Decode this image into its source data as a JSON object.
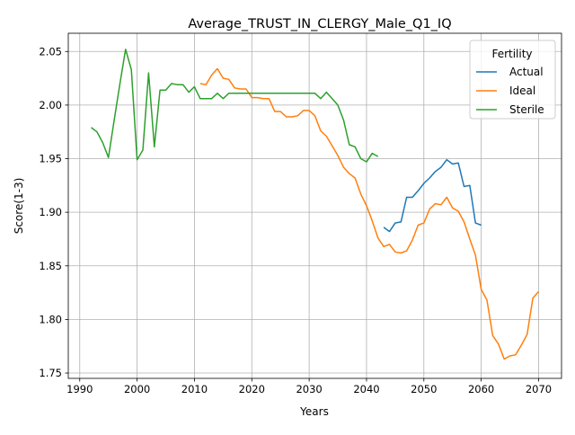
{
  "chart_data": {
    "type": "line",
    "title": "Average_TRUST_IN_CLERGY_Male_Q1_IQ",
    "xlabel": "Years",
    "ylabel": "Score(1-3)",
    "xlim": [
      1988,
      2074
    ],
    "ylim": [
      1.745,
      2.067
    ],
    "xticks": [
      1990,
      2000,
      2010,
      2020,
      2030,
      2040,
      2050,
      2060,
      2070
    ],
    "yticks": [
      1.75,
      1.8,
      1.85,
      1.9,
      1.95,
      2.0,
      2.05
    ],
    "grid": true,
    "legend": {
      "title": "Fertility",
      "position": "top-right"
    },
    "series": [
      {
        "name": "Actual",
        "color": "#1f77b4",
        "points": [
          [
            2043,
            1.886
          ],
          [
            2044,
            1.882
          ],
          [
            2045,
            1.89
          ],
          [
            2046,
            1.891
          ],
          [
            2047,
            1.914
          ],
          [
            2048,
            1.914
          ],
          [
            2049,
            1.92
          ],
          [
            2050,
            1.927
          ],
          [
            2051,
            1.932
          ],
          [
            2052,
            1.938
          ],
          [
            2053,
            1.942
          ],
          [
            2054,
            1.949
          ],
          [
            2055,
            1.945
          ],
          [
            2056,
            1.946
          ],
          [
            2057,
            1.924
          ],
          [
            2058,
            1.925
          ],
          [
            2059,
            1.89
          ],
          [
            2060,
            1.888
          ]
        ]
      },
      {
        "name": "Ideal",
        "color": "#ff7f0e",
        "points": [
          [
            2011,
            2.02
          ],
          [
            2012,
            2.019
          ],
          [
            2013,
            2.028
          ],
          [
            2014,
            2.034
          ],
          [
            2015,
            2.025
          ],
          [
            2016,
            2.024
          ],
          [
            2017,
            2.016
          ],
          [
            2018,
            2.015
          ],
          [
            2019,
            2.015
          ],
          [
            2020,
            2.007
          ],
          [
            2021,
            2.007
          ],
          [
            2022,
            2.006
          ],
          [
            2023,
            2.006
          ],
          [
            2024,
            1.994
          ],
          [
            2025,
            1.994
          ],
          [
            2026,
            1.989
          ],
          [
            2027,
            1.989
          ],
          [
            2028,
            1.99
          ],
          [
            2029,
            1.995
          ],
          [
            2030,
            1.995
          ],
          [
            2031,
            1.99
          ],
          [
            2032,
            1.976
          ],
          [
            2033,
            1.971
          ],
          [
            2034,
            1.962
          ],
          [
            2035,
            1.953
          ],
          [
            2036,
            1.942
          ],
          [
            2037,
            1.936
          ],
          [
            2038,
            1.932
          ],
          [
            2039,
            1.917
          ],
          [
            2040,
            1.906
          ],
          [
            2041,
            1.892
          ],
          [
            2042,
            1.876
          ],
          [
            2043,
            1.868
          ],
          [
            2044,
            1.87
          ],
          [
            2045,
            1.863
          ],
          [
            2046,
            1.862
          ],
          [
            2047,
            1.864
          ],
          [
            2048,
            1.874
          ],
          [
            2049,
            1.888
          ],
          [
            2050,
            1.89
          ],
          [
            2051,
            1.903
          ],
          [
            2052,
            1.908
          ],
          [
            2053,
            1.907
          ],
          [
            2054,
            1.914
          ],
          [
            2055,
            1.904
          ],
          [
            2056,
            1.901
          ],
          [
            2057,
            1.891
          ],
          [
            2058,
            1.875
          ],
          [
            2059,
            1.86
          ],
          [
            2060,
            1.828
          ],
          [
            2061,
            1.818
          ],
          [
            2062,
            1.785
          ],
          [
            2063,
            1.777
          ],
          [
            2064,
            1.763
          ],
          [
            2065,
            1.766
          ],
          [
            2066,
            1.767
          ],
          [
            2067,
            1.776
          ],
          [
            2068,
            1.786
          ],
          [
            2069,
            1.82
          ],
          [
            2070,
            1.826
          ]
        ]
      },
      {
        "name": "Sterile",
        "color": "#2ca02c",
        "points": [
          [
            1992,
            1.979
          ],
          [
            1993,
            1.975
          ],
          [
            1994,
            1.965
          ],
          [
            1995,
            1.951
          ],
          [
            1996,
            1.986
          ],
          [
            1997,
            2.02
          ],
          [
            1998,
            2.052
          ],
          [
            1999,
            2.033
          ],
          [
            2000,
            1.949
          ],
          [
            2001,
            1.958
          ],
          [
            2002,
            2.03
          ],
          [
            2003,
            1.961
          ],
          [
            2004,
            2.014
          ],
          [
            2005,
            2.014
          ],
          [
            2006,
            2.02
          ],
          [
            2007,
            2.019
          ],
          [
            2008,
            2.019
          ],
          [
            2009,
            2.012
          ],
          [
            2010,
            2.017
          ],
          [
            2011,
            2.006
          ],
          [
            2012,
            2.006
          ],
          [
            2013,
            2.006
          ],
          [
            2014,
            2.011
          ],
          [
            2015,
            2.006
          ],
          [
            2016,
            2.011
          ],
          [
            2017,
            2.011
          ],
          [
            2018,
            2.011
          ],
          [
            2019,
            2.011
          ],
          [
            2020,
            2.011
          ],
          [
            2021,
            2.011
          ],
          [
            2022,
            2.011
          ],
          [
            2023,
            2.011
          ],
          [
            2024,
            2.011
          ],
          [
            2025,
            2.011
          ],
          [
            2026,
            2.011
          ],
          [
            2027,
            2.011
          ],
          [
            2028,
            2.011
          ],
          [
            2029,
            2.011
          ],
          [
            2030,
            2.011
          ],
          [
            2031,
            2.011
          ],
          [
            2032,
            2.006
          ],
          [
            2033,
            2.012
          ],
          [
            2034,
            2.006
          ],
          [
            2035,
            2.0
          ],
          [
            2036,
            1.986
          ],
          [
            2037,
            1.963
          ],
          [
            2038,
            1.961
          ],
          [
            2039,
            1.95
          ],
          [
            2040,
            1.947
          ],
          [
            2041,
            1.955
          ],
          [
            2042,
            1.952
          ]
        ]
      }
    ]
  }
}
